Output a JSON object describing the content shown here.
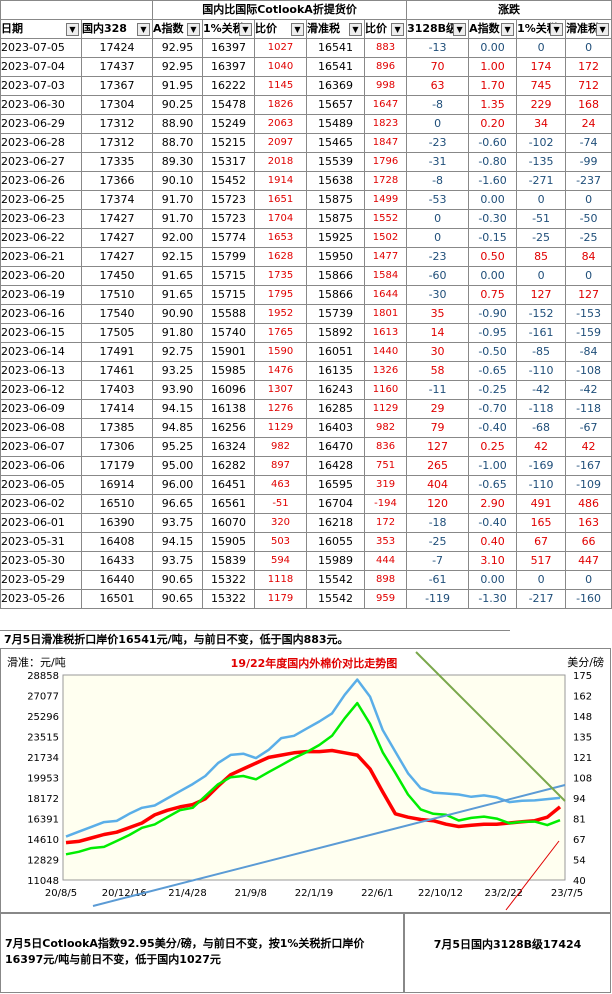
{
  "header": {
    "group1": "国内比国际CotlookA折提货价",
    "group2": "涨跌",
    "columns": [
      "日期",
      "国内328",
      "A指数",
      "1%关税",
      "比价",
      "滑准税",
      "比价",
      "3128B级",
      "A指数",
      "1%关税",
      "滑准税"
    ]
  },
  "rows": [
    [
      "2023-07-05",
      "17424",
      "92.95",
      "16397",
      "1027",
      "16541",
      "883",
      "-13",
      "0.00",
      "0",
      "0"
    ],
    [
      "2023-07-04",
      "17437",
      "92.95",
      "16397",
      "1040",
      "16541",
      "896",
      "70",
      "1.00",
      "174",
      "172"
    ],
    [
      "2023-07-03",
      "17367",
      "91.95",
      "16222",
      "1145",
      "16369",
      "998",
      "63",
      "1.70",
      "745",
      "712"
    ],
    [
      "2023-06-30",
      "17304",
      "90.25",
      "15478",
      "1826",
      "15657",
      "1647",
      "-8",
      "1.35",
      "229",
      "168"
    ],
    [
      "2023-06-29",
      "17312",
      "88.90",
      "15249",
      "2063",
      "15489",
      "1823",
      "0",
      "0.20",
      "34",
      "24"
    ],
    [
      "2023-06-28",
      "17312",
      "88.70",
      "15215",
      "2097",
      "15465",
      "1847",
      "-23",
      "-0.60",
      "-102",
      "-74"
    ],
    [
      "2023-06-27",
      "17335",
      "89.30",
      "15317",
      "2018",
      "15539",
      "1796",
      "-31",
      "-0.80",
      "-135",
      "-99"
    ],
    [
      "2023-06-26",
      "17366",
      "90.10",
      "15452",
      "1914",
      "15638",
      "1728",
      "-8",
      "-1.60",
      "-271",
      "-237"
    ],
    [
      "2023-06-25",
      "17374",
      "91.70",
      "15723",
      "1651",
      "15875",
      "1499",
      "-53",
      "0.00",
      "0",
      "0"
    ],
    [
      "2023-06-23",
      "17427",
      "91.70",
      "15723",
      "1704",
      "15875",
      "1552",
      "0",
      "-0.30",
      "-51",
      "-50"
    ],
    [
      "2023-06-22",
      "17427",
      "92.00",
      "15774",
      "1653",
      "15925",
      "1502",
      "0",
      "-0.15",
      "-25",
      "-25"
    ],
    [
      "2023-06-21",
      "17427",
      "92.15",
      "15799",
      "1628",
      "15950",
      "1477",
      "-23",
      "0.50",
      "85",
      "84"
    ],
    [
      "2023-06-20",
      "17450",
      "91.65",
      "15715",
      "1735",
      "15866",
      "1584",
      "-60",
      "0.00",
      "0",
      "0"
    ],
    [
      "2023-06-19",
      "17510",
      "91.65",
      "15715",
      "1795",
      "15866",
      "1644",
      "-30",
      "0.75",
      "127",
      "127"
    ],
    [
      "2023-06-16",
      "17540",
      "90.90",
      "15588",
      "1952",
      "15739",
      "1801",
      "35",
      "-0.90",
      "-152",
      "-153"
    ],
    [
      "2023-06-15",
      "17505",
      "91.80",
      "15740",
      "1765",
      "15892",
      "1613",
      "14",
      "-0.95",
      "-161",
      "-159"
    ],
    [
      "2023-06-14",
      "17491",
      "92.75",
      "15901",
      "1590",
      "16051",
      "1440",
      "30",
      "-0.50",
      "-85",
      "-84"
    ],
    [
      "2023-06-13",
      "17461",
      "93.25",
      "15985",
      "1476",
      "16135",
      "1326",
      "58",
      "-0.65",
      "-110",
      "-108"
    ],
    [
      "2023-06-12",
      "17403",
      "93.90",
      "16096",
      "1307",
      "16243",
      "1160",
      "-11",
      "-0.25",
      "-42",
      "-42"
    ],
    [
      "2023-06-09",
      "17414",
      "94.15",
      "16138",
      "1276",
      "16285",
      "1129",
      "29",
      "-0.70",
      "-118",
      "-118"
    ],
    [
      "2023-06-08",
      "17385",
      "94.85",
      "16256",
      "1129",
      "16403",
      "982",
      "79",
      "-0.40",
      "-68",
      "-67"
    ],
    [
      "2023-06-07",
      "17306",
      "95.25",
      "16324",
      "982",
      "16470",
      "836",
      "127",
      "0.25",
      "42",
      "42"
    ],
    [
      "2023-06-06",
      "17179",
      "95.00",
      "16282",
      "897",
      "16428",
      "751",
      "265",
      "-1.00",
      "-169",
      "-167"
    ],
    [
      "2023-06-05",
      "16914",
      "96.00",
      "16451",
      "463",
      "16595",
      "319",
      "404",
      "-0.65",
      "-110",
      "-109"
    ],
    [
      "2023-06-02",
      "16510",
      "96.65",
      "16561",
      "-51",
      "16704",
      "-194",
      "120",
      "2.90",
      "491",
      "486"
    ],
    [
      "2023-06-01",
      "16390",
      "93.75",
      "16070",
      "320",
      "16218",
      "172",
      "-18",
      "-0.40",
      "165",
      "163"
    ],
    [
      "2023-05-31",
      "16408",
      "94.15",
      "15905",
      "503",
      "16055",
      "353",
      "-25",
      "0.40",
      "67",
      "66"
    ],
    [
      "2023-05-30",
      "16433",
      "93.75",
      "15839",
      "594",
      "15989",
      "444",
      "-7",
      "3.10",
      "517",
      "447"
    ],
    [
      "2023-05-29",
      "16440",
      "90.65",
      "15322",
      "1118",
      "15542",
      "898",
      "-61",
      "0.00",
      "0",
      "0"
    ],
    [
      "2023-05-26",
      "16501",
      "90.65",
      "15322",
      "1179",
      "15542",
      "959",
      "-119",
      "-1.30",
      "-217",
      "-160"
    ]
  ],
  "note_top": "7月5日滑准税折口岸价16541元/吨，与前日不变，低于国内883元。",
  "chart_data": {
    "type": "line",
    "title": "19/22年度国内外棉价对比走势图",
    "ylabel_left": "滑准：元/吨",
    "ylabel_right": "美分/磅",
    "y_left_ticks": [
      "28858",
      "27077",
      "25296",
      "23515",
      "21734",
      "19953",
      "18172",
      "16391",
      "14610",
      "12829",
      "11048"
    ],
    "y_right_ticks": [
      "175",
      "162",
      "148",
      "135",
      "121",
      "108",
      "94",
      "81",
      "67",
      "54",
      "40"
    ],
    "x_ticks": [
      "20/8/5",
      "20/12/16",
      "21/4/28",
      "21/9/8",
      "22/1/19",
      "22/6/1",
      "22/10/12",
      "23/2/22",
      "23/7/5"
    ],
    "ylim_left": [
      11048,
      28858
    ],
    "ylim_right": [
      40,
      175
    ],
    "series": [
      {
        "color": "#5aaee8",
        "values": [
          15000,
          15300,
          15600,
          15900,
          16300,
          16800,
          17200,
          17700,
          18200,
          18700,
          19200,
          20200,
          21200,
          21800,
          22200,
          21700,
          22300,
          23200,
          23700,
          24200,
          24700,
          25700,
          27200,
          28400,
          26800,
          24200,
          22200,
          20200,
          19200,
          18700,
          18500,
          18300,
          18400,
          18400,
          18100,
          18000,
          18000,
          17900,
          17900,
          18300
        ]
      },
      {
        "color": "#ff0000",
        "values": [
          14300,
          14400,
          14700,
          15000,
          15200,
          15600,
          16000,
          16700,
          17100,
          17400,
          17600,
          18100,
          19200,
          20200,
          20700,
          21200,
          21700,
          21900,
          22100,
          22200,
          22200,
          22300,
          22100,
          21900,
          20700,
          18700,
          16800,
          16500,
          16300,
          16200,
          15900,
          15700,
          15800,
          15900,
          15900,
          16000,
          16100,
          16200,
          16500,
          17400
        ]
      },
      {
        "color": "#00ee00",
        "values": [
          13400,
          13500,
          13700,
          14100,
          14500,
          14900,
          15400,
          16000,
          16500,
          17000,
          17500,
          18400,
          19300,
          19800,
          20200,
          19800,
          20300,
          21200,
          21700,
          22100,
          22600,
          23700,
          25100,
          26300,
          24800,
          22200,
          20300,
          18300,
          17300,
          16800,
          16600,
          16400,
          16500,
          16500,
          16200,
          16100,
          16100,
          16000,
          16000,
          16300
        ]
      }
    ]
  },
  "note_bottom_left": "7月5日CotlookA指数92.95美分/磅，与前日不变，按1%关税折口岸价16397元/吨与前日不变，低于国内1027元",
  "note_bottom_right": "7月5日国内3128B级17424"
}
